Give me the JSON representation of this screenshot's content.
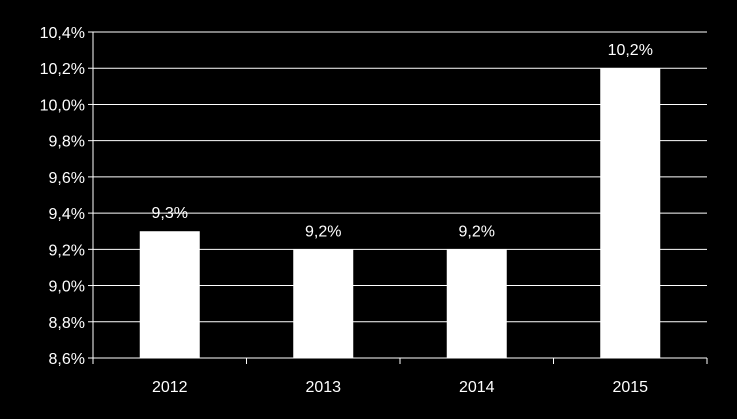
{
  "chart_data": {
    "type": "bar",
    "title": "",
    "xlabel": "",
    "ylabel": "",
    "categories": [
      "2012",
      "2013",
      "2014",
      "2015"
    ],
    "values": [
      9.3,
      9.2,
      9.2,
      10.2
    ],
    "data_labels": [
      "9,3%",
      "9,2%",
      "9,2%",
      "10,2%"
    ],
    "ylim": [
      8.6,
      10.4
    ],
    "y_ticks": [
      8.6,
      8.8,
      9.0,
      9.2,
      9.4,
      9.6,
      9.8,
      10.0,
      10.2,
      10.4
    ],
    "y_tick_labels": [
      "8,6%",
      "8,8%",
      "9,0%",
      "9,2%",
      "9,4%",
      "9,6%",
      "9,8%",
      "10,0%",
      "10,2%",
      "10,4%"
    ],
    "grid": true,
    "legend": "none",
    "colors": {
      "background": "#000000",
      "bar": "#ffffff",
      "grid": "#ffffff",
      "text": "#ffffff"
    }
  }
}
